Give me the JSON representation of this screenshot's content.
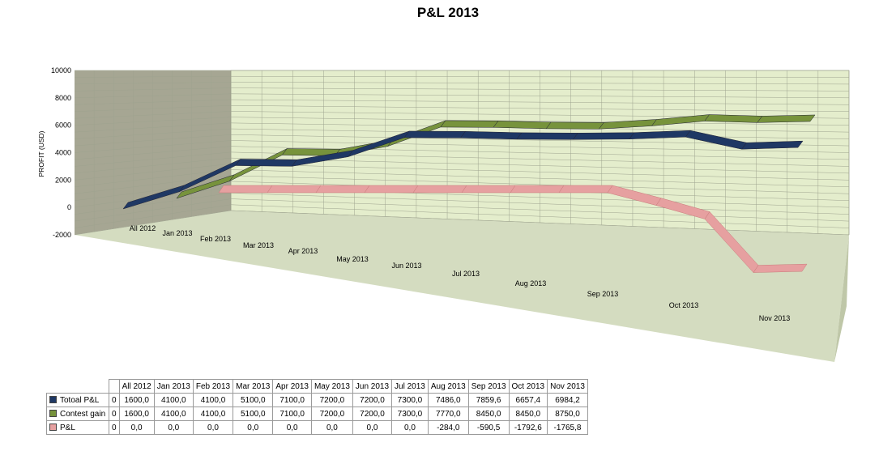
{
  "chart_data": {
    "type": "line",
    "style": "3d-ribbon",
    "title": "P&L 2013",
    "ylabel": "PROFIT  (USD)",
    "xlabel": "",
    "ylim": [
      -2000,
      10000
    ],
    "yticks": [
      "10000",
      "8000",
      "6000",
      "4000",
      "2000",
      "0",
      "-2000"
    ],
    "grid": true,
    "legend": "data-table-below",
    "categories": [
      "",
      "All 2012",
      "Jan 2013",
      "Feb 2013",
      "Mar 2013",
      "Apr 2013",
      "May 2013",
      "Jun 2013",
      "Jul 2013",
      "Aug 2013",
      "Sep 2013",
      "Oct 2013",
      "Nov 2013"
    ],
    "series": [
      {
        "name": "Totoal P&L",
        "color": "#1f3864",
        "values": [
          0,
          1600.0,
          4100.0,
          4100.0,
          5100.0,
          7100.0,
          7200.0,
          7200.0,
          7300.0,
          7486.0,
          7859.6,
          6657.4,
          6984.2
        ],
        "labels": [
          "0",
          "1600,0",
          "4100,0",
          "4100,0",
          "5100,0",
          "7100,0",
          "7200,0",
          "7200,0",
          "7300,0",
          "7486,0",
          "7859,6",
          "6657,4",
          "6984,2"
        ]
      },
      {
        "name": "Contest gain",
        "color": "#77933c",
        "values": [
          0,
          1600.0,
          4100.0,
          4100.0,
          5100.0,
          7100.0,
          7200.0,
          7200.0,
          7300.0,
          7770.0,
          8450.0,
          8450.0,
          8750.0
        ],
        "labels": [
          "0",
          "1600,0",
          "4100,0",
          "4100,0",
          "5100,0",
          "7100,0",
          "7200,0",
          "7200,0",
          "7300,0",
          "7770,0",
          "8450,0",
          "8450,0",
          "8750,0"
        ]
      },
      {
        "name": "P&L",
        "color": "#e6a0a0",
        "values": [
          0,
          0.0,
          0.0,
          0.0,
          0.0,
          0.0,
          0.0,
          0.0,
          0.0,
          -284.0,
          -590.5,
          -1792.6,
          -1765.8
        ],
        "labels": [
          "0",
          "0,0",
          "0,0",
          "0,0",
          "0,0",
          "0,0",
          "0,0",
          "0,0",
          "0,0",
          "-284,0",
          "-590,5",
          "-1792,6",
          "-1765,8"
        ]
      }
    ]
  },
  "colors": {
    "back_wall": "#e4edcc",
    "side_wall": "#a6a693",
    "floor": "#d4dcc0",
    "grid": "#9ea38f"
  }
}
